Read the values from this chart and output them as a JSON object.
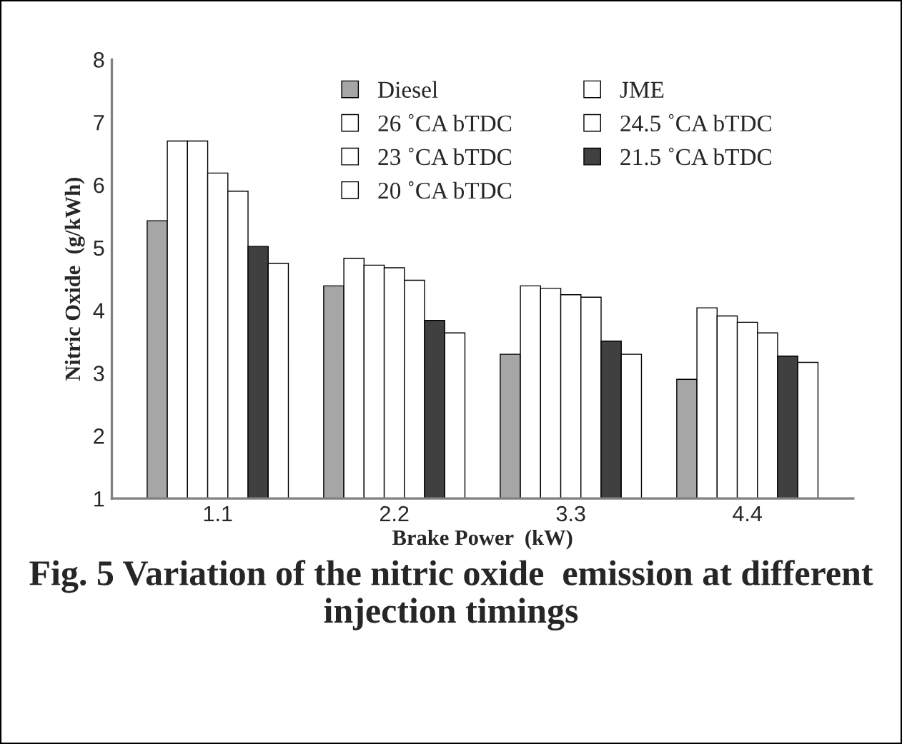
{
  "chart_data": {
    "type": "bar",
    "title": "Fig. 5 Variation of the nitric oxide  emission at different injection timings",
    "xlabel": "Brake Power  (kW)",
    "ylabel": "Nitric Oxide  (g/kWh)",
    "categories": [
      "1.1",
      "2.2",
      "3.3",
      "4.4"
    ],
    "series": [
      {
        "name": "Diesel",
        "color": "#a6a6a6",
        "values": [
          5.43,
          4.39,
          3.3,
          2.9
        ]
      },
      {
        "name": "JME",
        "color": "#ffffff",
        "values": [
          6.7,
          4.83,
          4.39,
          4.04
        ]
      },
      {
        "name": "26 ˚CA bTDC",
        "color": "#ffffff",
        "values": [
          6.7,
          4.72,
          4.35,
          3.91
        ]
      },
      {
        "name": "24.5 ˚CA bTDC",
        "color": "#ffffff",
        "values": [
          6.19,
          4.68,
          4.25,
          3.81
        ]
      },
      {
        "name": "23 ˚CA bTDC",
        "color": "#ffffff",
        "values": [
          5.9,
          4.48,
          4.21,
          3.64
        ]
      },
      {
        "name": "21.5 ˚CA bTDC",
        "color": "#404040",
        "values": [
          5.02,
          3.84,
          3.51,
          3.27
        ]
      },
      {
        "name": "20 ˚CA bTDC",
        "color": "#ffffff",
        "values": [
          4.75,
          3.64,
          3.3,
          3.17
        ]
      }
    ],
    "ylim": [
      1,
      8
    ],
    "yticks": [
      1,
      2,
      3,
      4,
      5,
      6,
      7,
      8
    ],
    "grid": false,
    "legend": "top right"
  }
}
